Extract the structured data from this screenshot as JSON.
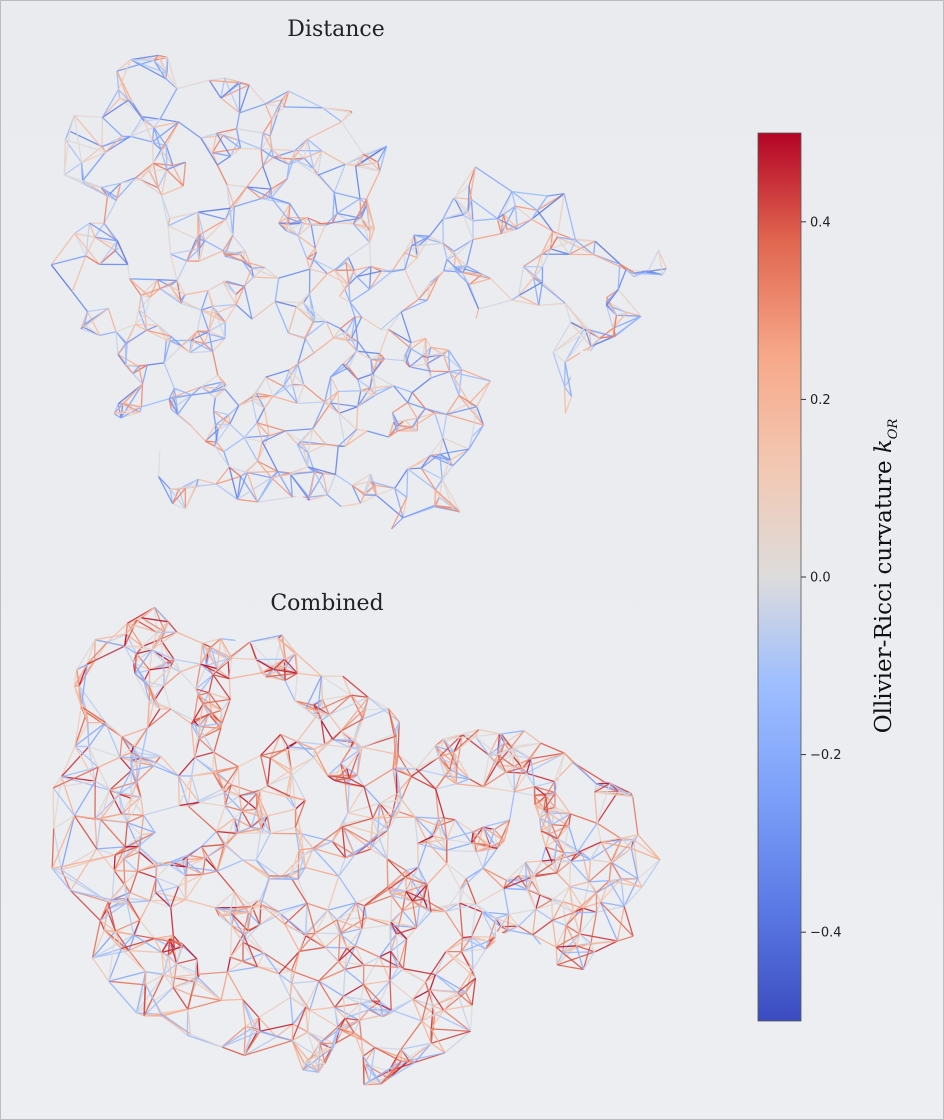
{
  "panels": [
    {
      "title": "Distance"
    },
    {
      "title": "Combined"
    }
  ],
  "colorbar": {
    "label_text": "Ollivier-Ricci curvature",
    "symbol": "k",
    "subscript": "OR",
    "range": [
      -0.5,
      0.5
    ],
    "ticks": [
      {
        "value": 0.4,
        "label": "0.4"
      },
      {
        "value": 0.2,
        "label": "0.2"
      },
      {
        "value": 0.0,
        "label": "0.0"
      },
      {
        "value": -0.2,
        "label": "−0.2"
      },
      {
        "value": -0.4,
        "label": "−0.4"
      }
    ],
    "colors": {
      "low": "#3b4cc0",
      "mid": "#dddcdc",
      "high": "#b40426"
    }
  }
}
